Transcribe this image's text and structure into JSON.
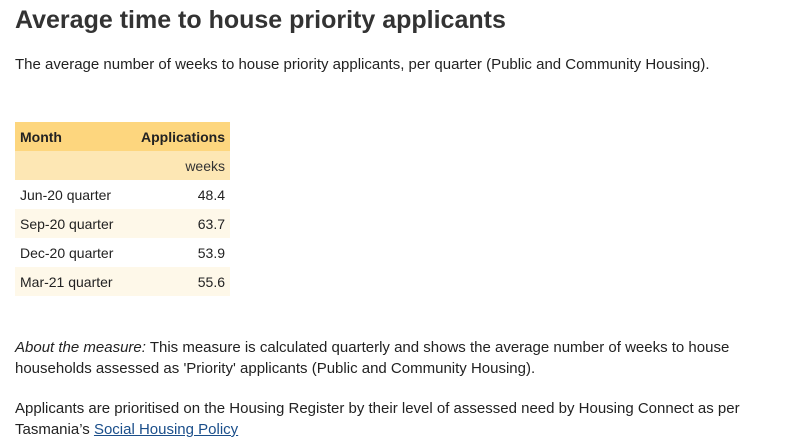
{
  "title": "Average time to house priority applicants",
  "subtitle": "The average number of weeks to house priority applicants, per quarter (Public and Community Housing).",
  "table": {
    "headers": {
      "month": "Month",
      "applications": "Applications"
    },
    "unit": "weeks",
    "rows": [
      {
        "month": "Jun-20 quarter",
        "value": "48.4"
      },
      {
        "month": "Sep-20 quarter",
        "value": "63.7"
      },
      {
        "month": "Dec-20 quarter",
        "value": "53.9"
      },
      {
        "month": "Mar-21 quarter",
        "value": "55.6"
      }
    ]
  },
  "about": {
    "label": "About the measure:",
    "text": " This measure is calculated quarterly and shows the average number of weeks to house households assessed as 'Priority' applicants (Public and Community Housing)."
  },
  "applicants": {
    "text": "Applicants are prioritised on the Housing Register by their level of assessed need by Housing Connect as per Tasmania’s ",
    "link_label": "Social Housing Policy"
  },
  "colors": {
    "header_bg": "#fdd67e",
    "unit_row_bg": "#fde7b4",
    "alt_row_bg": "#fef8e9",
    "link": "#1a4e8a"
  }
}
